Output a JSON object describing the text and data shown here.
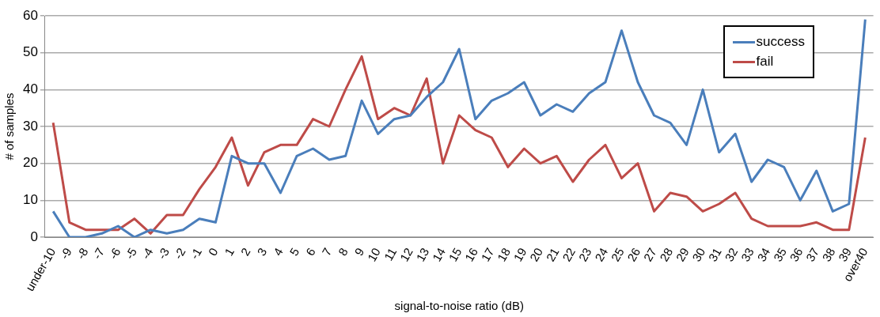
{
  "chart_data": {
    "type": "line",
    "xlabel": "signal-to-noise ratio (dB)",
    "ylabel": "# of samples",
    "categories": [
      "under-10",
      "-9",
      "-8",
      "-7",
      "-6",
      "-5",
      "-4",
      "-3",
      "-2",
      "-1",
      "0",
      "1",
      "2",
      "3",
      "4",
      "5",
      "6",
      "7",
      "8",
      "9",
      "10",
      "11",
      "12",
      "13",
      "14",
      "15",
      "16",
      "17",
      "18",
      "19",
      "20",
      "21",
      "22",
      "23",
      "24",
      "25",
      "26",
      "27",
      "28",
      "29",
      "30",
      "31",
      "32",
      "33",
      "34",
      "35",
      "36",
      "37",
      "38",
      "39",
      "over40"
    ],
    "series": [
      {
        "name": "success",
        "color": "#4a7ebb",
        "values": [
          7,
          0,
          0,
          1,
          3,
          0,
          2,
          1,
          2,
          5,
          4,
          22,
          20,
          20,
          12,
          22,
          24,
          21,
          22,
          37,
          28,
          32,
          33,
          38,
          42,
          51,
          32,
          37,
          39,
          42,
          33,
          36,
          34,
          39,
          42,
          56,
          42,
          33,
          31,
          25,
          40,
          23,
          28,
          15,
          21,
          19,
          10,
          18,
          7,
          9,
          59
        ]
      },
      {
        "name": "fail",
        "color": "#be4b48",
        "values": [
          31,
          4,
          2,
          2,
          2,
          5,
          1,
          6,
          6,
          13,
          19,
          27,
          14,
          23,
          25,
          25,
          32,
          30,
          40,
          49,
          32,
          35,
          33,
          43,
          20,
          33,
          29,
          27,
          19,
          24,
          20,
          22,
          15,
          21,
          25,
          16,
          20,
          7,
          12,
          11,
          7,
          9,
          12,
          5,
          3,
          3,
          3,
          4,
          2,
          2,
          27
        ]
      }
    ],
    "ylim": [
      0,
      60
    ],
    "yticks": [
      0,
      10,
      20,
      30,
      40,
      50,
      60
    ],
    "grid": "y",
    "legend": "top right",
    "marker": "none",
    "line_style": "solid"
  }
}
